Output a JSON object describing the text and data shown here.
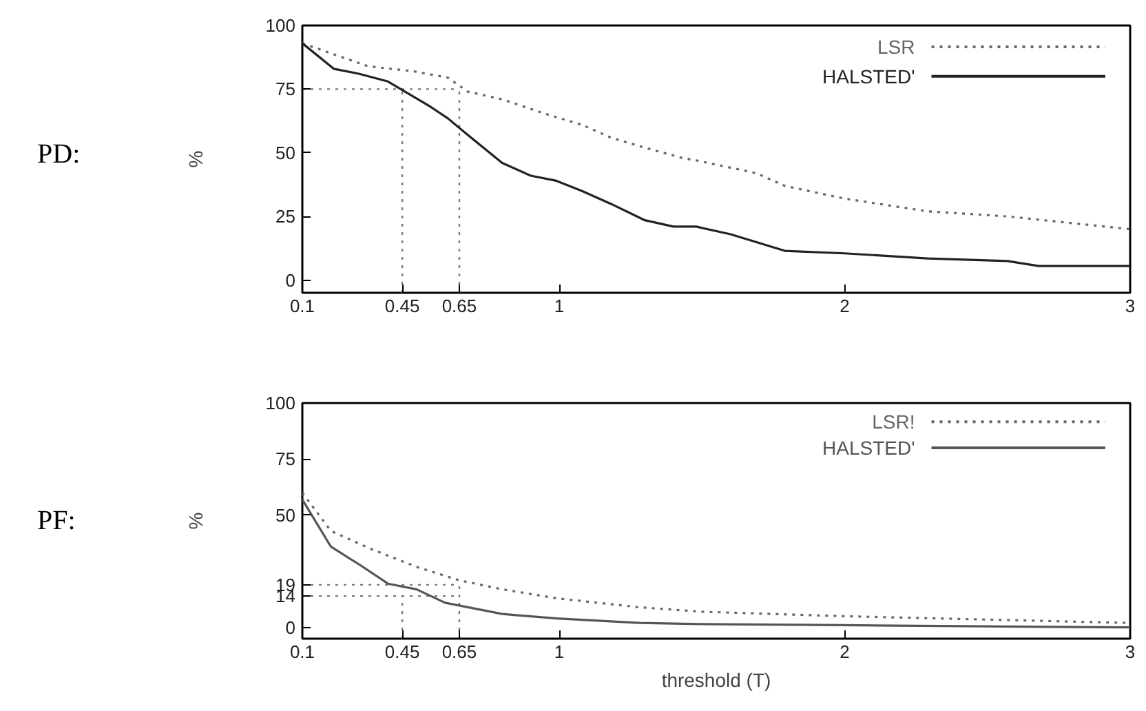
{
  "chart_data": [
    {
      "type": "line",
      "annotations": [
        "PD:"
      ],
      "ylabel": "%",
      "xlim": [
        0.1,
        3
      ],
      "ylim": [
        -5,
        100
      ],
      "xticks": [
        0.1,
        0.45,
        0.65,
        1,
        2,
        3
      ],
      "yticks": [
        0,
        25,
        50,
        75,
        100
      ],
      "grid": false,
      "legend": "top right",
      "marker": "none",
      "ref_lines": [
        {
          "axis": "y",
          "value": 75,
          "color": "#777777",
          "line_style": "dotted"
        },
        {
          "axis": "x",
          "value": 0.45,
          "color": "#777777",
          "line_style": "dotted"
        },
        {
          "axis": "x",
          "value": 0.65,
          "color": "#777777",
          "line_style": "dotted"
        }
      ],
      "series": [
        {
          "name": "LSR",
          "color": "#666666",
          "line_style": "dotted",
          "x": [
            0.1,
            0.33,
            0.49,
            0.61,
            0.68,
            0.8,
            0.96,
            1.08,
            1.18,
            1.3,
            1.43,
            1.48,
            1.69,
            1.79,
            2.0,
            2.29,
            2.57,
            3.0
          ],
          "values": [
            93,
            84,
            82,
            79.5,
            74,
            71,
            65,
            61,
            56,
            52,
            48,
            47,
            42,
            37,
            32,
            27,
            25,
            20
          ]
        },
        {
          "name": "HALSTED'",
          "color": "#222222",
          "line_style": "solid",
          "x": [
            0.1,
            0.21,
            0.3,
            0.4,
            0.46,
            0.55,
            0.61,
            0.68,
            0.8,
            0.9,
            0.99,
            1.08,
            1.18,
            1.3,
            1.4,
            1.48,
            1.6,
            1.79,
            2.0,
            2.29,
            2.57,
            2.68,
            3.0
          ],
          "values": [
            93,
            83,
            81,
            78,
            74,
            68,
            63.5,
            57,
            46,
            41,
            39,
            35,
            30,
            23.5,
            21,
            21,
            18,
            11.5,
            10.5,
            8.5,
            7.5,
            5.5,
            5.5
          ]
        }
      ]
    },
    {
      "type": "line",
      "annotations": [
        "PF:"
      ],
      "ylabel": "%",
      "xlabel": "threshold (T)",
      "xlim": [
        0.1,
        3
      ],
      "ylim": [
        -5,
        100
      ],
      "xticks": [
        0.1,
        0.45,
        0.65,
        1,
        2,
        3
      ],
      "yticks": [
        0,
        14,
        19,
        50,
        75,
        100
      ],
      "grid": false,
      "legend": "top right",
      "marker": "none",
      "ref_lines": [
        {
          "axis": "y",
          "value": 14,
          "color": "#777777",
          "line_style": "dotted"
        },
        {
          "axis": "y",
          "value": 19,
          "color": "#777777",
          "line_style": "dotted"
        },
        {
          "axis": "x",
          "value": 0.45,
          "color": "#777777",
          "line_style": "dotted"
        },
        {
          "axis": "x",
          "value": 0.65,
          "color": "#777777",
          "line_style": "dotted"
        }
      ],
      "series": [
        {
          "name": "LSR!",
          "color": "#666666",
          "line_style": "dotted",
          "x": [
            0.1,
            0.2,
            0.34,
            0.5,
            0.65,
            0.8,
            0.99,
            1.28,
            1.5,
            2.0,
            3.0
          ],
          "values": [
            60,
            43,
            35,
            27,
            21,
            17,
            13,
            9,
            7,
            5,
            2
          ]
        },
        {
          "name": "HALSTED'",
          "color": "#555555",
          "line_style": "solid",
          "x": [
            0.1,
            0.2,
            0.3,
            0.4,
            0.5,
            0.6,
            0.8,
            0.99,
            1.28,
            1.5,
            2.0,
            3.0
          ],
          "values": [
            57,
            36,
            28,
            19.5,
            17,
            11,
            6,
            4,
            2,
            1.5,
            1,
            0
          ]
        }
      ]
    }
  ]
}
